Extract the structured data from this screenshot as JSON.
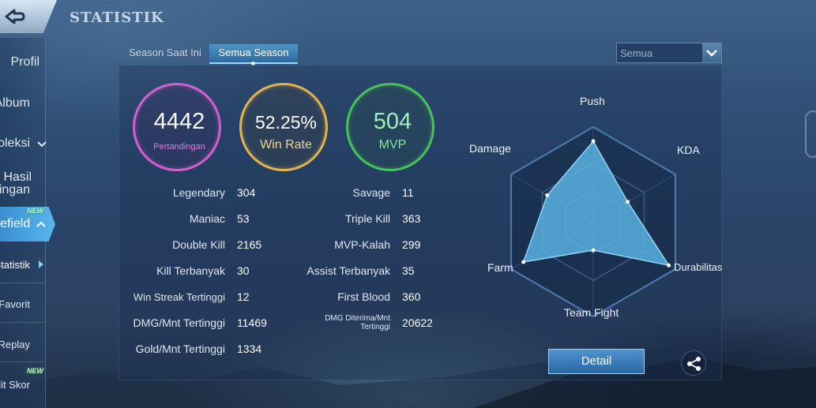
{
  "header": {
    "title": "STATISTIK"
  },
  "sidebar": {
    "items": [
      {
        "label": "Profil"
      },
      {
        "label": "Album"
      },
      {
        "label": "oleksi"
      },
      {
        "label_line1": "Hasil",
        "label_line2": "ingan"
      },
      {
        "label": "efield",
        "badge": "NEW"
      },
      {
        "label": "Statistik"
      },
      {
        "label": "Favorit"
      },
      {
        "label": "Replay"
      },
      {
        "label": "lit Skor",
        "badge": "NEW"
      }
    ]
  },
  "tabs": [
    {
      "label": "Season Saat Ini"
    },
    {
      "label": "Semua Season"
    }
  ],
  "filter": {
    "selected": "Semua"
  },
  "summary": {
    "matches": {
      "value": "4442",
      "label": "Pertandingan",
      "color": "#d15fd0"
    },
    "win_rate": {
      "value": "52.25%",
      "label": "Win Rate",
      "color": "#e0b34d"
    },
    "mvp": {
      "value": "504",
      "label": "MVP",
      "color": "#46c25a"
    }
  },
  "stats_left": [
    {
      "label": "Legendary",
      "value": "304"
    },
    {
      "label": "Maniac",
      "value": "53"
    },
    {
      "label": "Double Kill",
      "value": "2165"
    },
    {
      "label": "Kill Terbanyak",
      "value": "30"
    },
    {
      "label": "Win Streak Tertinggi",
      "value": "12"
    },
    {
      "label": "DMG/Mnt Tertinggi",
      "value": "11469"
    },
    {
      "label": "Gold/Mnt Tertinggi",
      "value": "1334"
    }
  ],
  "stats_right": [
    {
      "label": "Savage",
      "value": "11"
    },
    {
      "label": "Triple Kill",
      "value": "363"
    },
    {
      "label": "MVP-Kalah",
      "value": "299"
    },
    {
      "label": "Assist Terbanyak",
      "value": "35"
    },
    {
      "label": "First Blood",
      "value": "360"
    },
    {
      "label_line1": "DMG Diterima/Mnt",
      "label_line2": "Tertinggi",
      "value": "20622"
    }
  ],
  "radar": {
    "axes": [
      "Push",
      "KDA",
      "Durabilitas",
      "Team Fight",
      "Farm",
      "Damage"
    ],
    "values": [
      0.85,
      0.42,
      0.92,
      0.3,
      0.85,
      0.56
    ],
    "fill_color": "#5bb6e6"
  },
  "actions": {
    "detail_label": "Detail",
    "share_icon": "share-icon"
  },
  "icons": {
    "back": "back-arrow-icon",
    "dropdown": "chevron-down-icon"
  }
}
